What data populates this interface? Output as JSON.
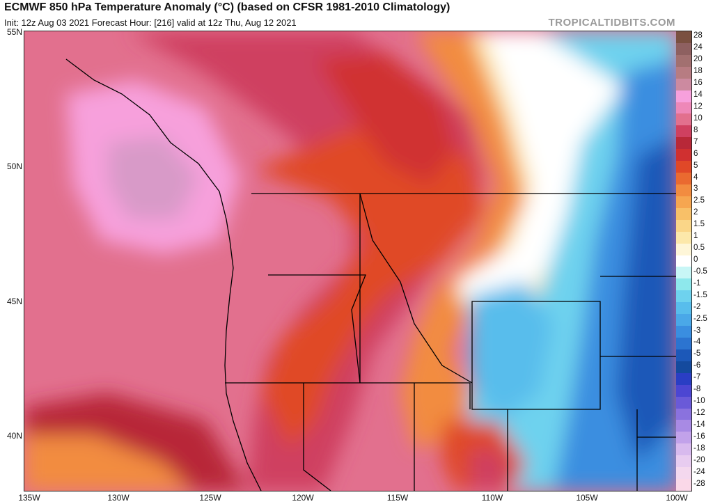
{
  "header": {
    "title": "ECMWF 850 hPa Temperature Anomaly (°C) (based on CFSR 1981-2010 Climatology)",
    "subtitle": "Init: 12z Aug 03 2021   Forecast Hour: [216]   valid at 12z Thu, Aug 12 2021",
    "brand": "TROPICALTIDBITS.COM"
  },
  "axes": {
    "lat_labels": [
      "55N",
      "50N",
      "45N",
      "40N"
    ],
    "lon_labels": [
      "135W",
      "130W",
      "125W",
      "120W",
      "115W",
      "110W",
      "105W",
      "100W"
    ]
  },
  "colorbar": {
    "levels": [
      "28",
      "24",
      "20",
      "18",
      "16",
      "14",
      "12",
      "10",
      "8",
      "7",
      "6",
      "5",
      "4",
      "3",
      "2.5",
      "2",
      "1.5",
      "1",
      "0.5",
      "0",
      "-0.5",
      "-1",
      "-1.5",
      "-2",
      "-2.5",
      "-3",
      "-4",
      "-5",
      "-6",
      "-7",
      "-8",
      "-10",
      "-12",
      "-14",
      "-16",
      "-18",
      "-20",
      "-24",
      "-28"
    ],
    "colors": [
      "#7a5040",
      "#8e6060",
      "#a27070",
      "#b77c82",
      "#cc8aa0",
      "#f7a0dc",
      "#ee88b8",
      "#e2708e",
      "#cf4060",
      "#b82838",
      "#d03030",
      "#e04828",
      "#ea6a30",
      "#f28c40",
      "#f6a650",
      "#f8c068",
      "#fad688",
      "#fce8aa",
      "#fef6d8",
      "#ffffff",
      "#c8f6f6",
      "#8ee8ec",
      "#6ed2ee",
      "#58bdec",
      "#4aa8e8",
      "#3a8ee0",
      "#2c74d0",
      "#1c58b8",
      "#144a9e",
      "#2a3ec4",
      "#4c46d2",
      "#6a5ad8",
      "#8a72de",
      "#a88ae4",
      "#c2a2ea",
      "#d8baee",
      "#e8ccf0",
      "#f4d8ee",
      "#fad8e8"
    ]
  }
}
